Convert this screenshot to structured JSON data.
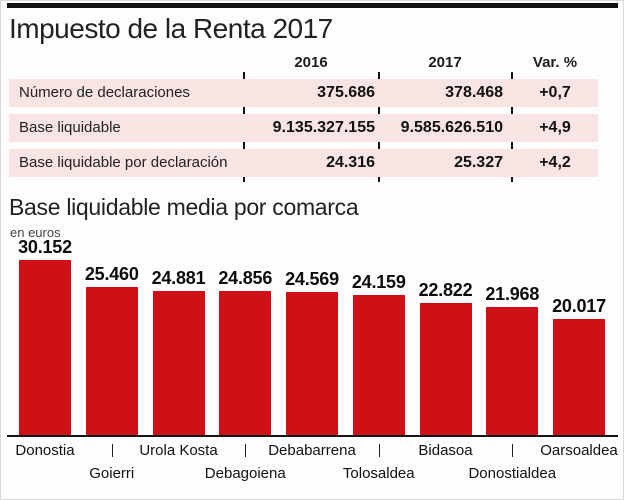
{
  "page": {
    "title": "Impuesto de la Renta 2017"
  },
  "table": {
    "columns": [
      "2016",
      "2017",
      "Var. %"
    ],
    "rows": [
      {
        "label": "Número de declaraciones",
        "v2016": "375.686",
        "v2017": "378.468",
        "var": "+0,7"
      },
      {
        "label": "Base liquidable",
        "v2016": "9.135.327.155",
        "v2017": "9.585.626.510",
        "var": "+4,9"
      },
      {
        "label": "Base liquidable por declaración",
        "v2016": "24.316",
        "v2017": "25.327",
        "var": "+4,2"
      }
    ]
  },
  "chart": {
    "title": "Base liquidable media por comarca",
    "unit_label": "en euros"
  },
  "chart_data": {
    "type": "bar",
    "title": "Base liquidable media por comarca",
    "subtitle": "en euros",
    "categories": [
      "Donostia",
      "Goierri",
      "Urola Kosta",
      "Debagoiena",
      "Debabarrena",
      "Tolosaldea",
      "Bidasoa",
      "Donostialdea",
      "Oarsoaldea"
    ],
    "values": [
      30152,
      25460,
      24881,
      24856,
      24569,
      24159,
      22822,
      21968,
      20017
    ],
    "value_labels": [
      "30.152",
      "25.460",
      "24.881",
      "24.856",
      "24.569",
      "24.159",
      "22.822",
      "21.968",
      "20.017"
    ],
    "ylim": [
      0,
      30152
    ],
    "grid": false,
    "legend": null,
    "bar_color": "#cf1016",
    "xlabel": "",
    "ylabel": "en euros"
  },
  "colors": {
    "bar_red": "#cf1016",
    "row_pink": "#f8e4e3",
    "rule_black": "#111111"
  }
}
